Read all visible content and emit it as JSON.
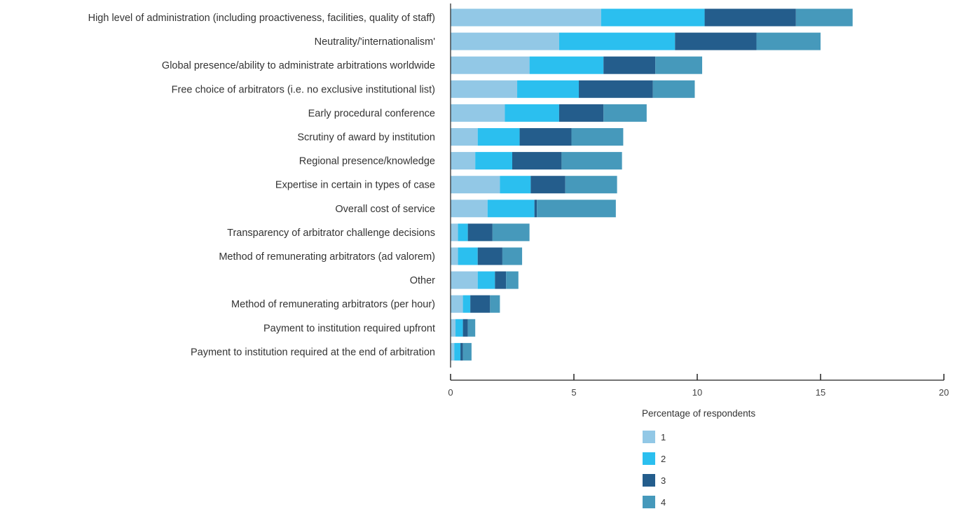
{
  "chart_data": {
    "type": "bar",
    "orientation": "horizontal",
    "stacked": true,
    "categories": [
      "High level of administration (including proactiveness, facilities, quality of staff)",
      "Neutrality/'internationalism'",
      "Global presence/ability to administrate arbitrations worldwide",
      "Free choice of arbitrators (i.e. no exclusive institutional list)",
      "Early procedural conference",
      "Scrutiny of award by institution",
      "Regional presence/knowledge",
      "Expertise in certain in types of case",
      "Overall cost of service",
      "Transparency of arbitrator challenge decisions",
      "Method of remunerating arbitrators (ad valorem)",
      "Other",
      "Method of remunerating arbitrators (per hour)",
      "Payment to institution required upfront",
      "Payment to institution required at the end of arbitration"
    ],
    "series": [
      {
        "name": "1",
        "color": "#92c8e6",
        "values": [
          6.1,
          4.4,
          3.2,
          2.7,
          2.2,
          1.1,
          1.0,
          2.0,
          1.5,
          0.3,
          0.3,
          1.1,
          0.5,
          0.2,
          0.15
        ]
      },
      {
        "name": "2",
        "color": "#2bbfef",
        "values": [
          4.2,
          4.7,
          3.0,
          2.5,
          2.2,
          1.7,
          1.5,
          1.25,
          1.9,
          0.4,
          0.8,
          0.7,
          0.3,
          0.3,
          0.25
        ]
      },
      {
        "name": "3",
        "color": "#245d8c",
        "values": [
          3.7,
          3.3,
          2.1,
          3.0,
          1.8,
          2.1,
          2.0,
          1.4,
          0.1,
          1.0,
          1.0,
          0.45,
          0.8,
          0.2,
          0.1
        ]
      },
      {
        "name": "4",
        "color": "#4699bb",
        "values": [
          2.3,
          2.6,
          1.9,
          1.7,
          1.75,
          2.1,
          2.45,
          2.1,
          3.2,
          1.5,
          0.8,
          0.5,
          0.4,
          0.3,
          0.35
        ]
      }
    ],
    "xlim": [
      0,
      20
    ],
    "xticks": [
      {
        "value": 0,
        "label": "0"
      },
      {
        "value": 5,
        "label": "5"
      },
      {
        "value": 10,
        "label": "10"
      },
      {
        "value": 15,
        "label": "15"
      },
      {
        "value": 20,
        "label": "20"
      }
    ],
    "title": "",
    "xlabel": "",
    "ylabel": "",
    "grid": false,
    "legend": {
      "title": "Percentage of respondents",
      "placement": "bottom-right"
    }
  }
}
